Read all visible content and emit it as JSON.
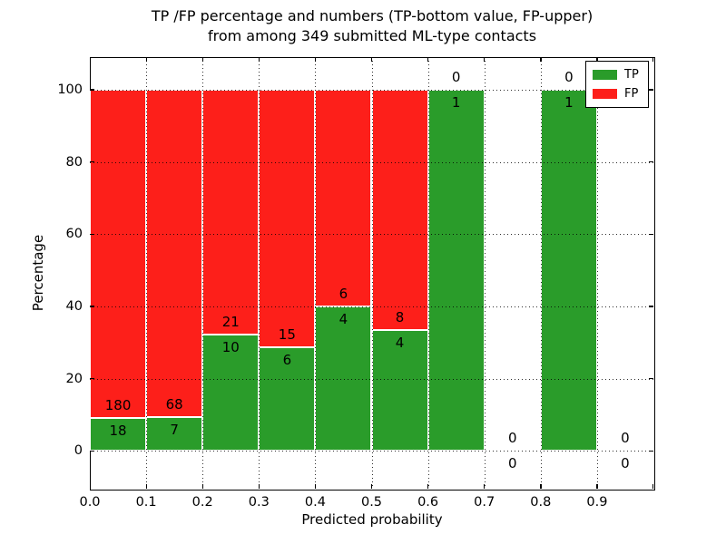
{
  "title": {
    "line1": "TP /FP percentage and numbers (TP-bottom value, FP-upper)",
    "line2": "from among 349 submitted ML-type contacts"
  },
  "axes": {
    "xlabel": "Predicted probability",
    "ylabel": "Percentage"
  },
  "legend": {
    "items": [
      {
        "label": "TP",
        "color": "#2a9c2a"
      },
      {
        "label": "FP",
        "color": "#fd1f1a"
      }
    ]
  },
  "colors": {
    "tp": "#2a9c2a",
    "fp": "#fd1f1a",
    "bar_edge": "#ffffff",
    "grid": "#000000"
  },
  "chart_data": {
    "type": "bar",
    "stacked": true,
    "title": "TP /FP percentage and numbers (TP-bottom value, FP-upper) from among 349 submitted ML-type contacts",
    "xlabel": "Predicted probability",
    "ylabel": "Percentage",
    "total_contacts": 349,
    "bin_starts": [
      0.0,
      0.1,
      0.2,
      0.3,
      0.4,
      0.5,
      0.6,
      0.7,
      0.8,
      0.9
    ],
    "bin_width": 0.1,
    "series": [
      {
        "name": "TP",
        "color": "#2a9c2a",
        "counts": [
          18,
          7,
          10,
          6,
          4,
          4,
          1,
          0,
          1,
          0
        ]
      },
      {
        "name": "FP",
        "color": "#fd1f1a",
        "counts": [
          180,
          68,
          21,
          15,
          6,
          8,
          0,
          0,
          0,
          0
        ]
      }
    ],
    "tp_percent": [
      9.1,
      9.3,
      32.3,
      28.6,
      40.0,
      33.3,
      100.0,
      0.0,
      100.0,
      0.0
    ],
    "bar_total_percent": [
      100,
      100,
      100,
      100,
      100,
      100,
      100,
      0,
      100,
      0
    ],
    "xlim": [
      0.0,
      1.0
    ],
    "ylim": [
      -10.5,
      109
    ],
    "xticks": [
      0.0,
      0.1,
      0.2,
      0.3,
      0.4,
      0.5,
      0.6,
      0.7,
      0.8,
      0.9
    ],
    "xtick_labels": [
      "0.0",
      "0.1",
      "0.2",
      "0.3",
      "0.4",
      "0.5",
      "0.6",
      "0.7",
      "0.8",
      "0.9"
    ],
    "extra_unlabeled_xticks": [
      1.0
    ],
    "yticks": [
      0,
      20,
      40,
      60,
      80,
      100
    ],
    "ytick_labels": [
      "0",
      "20",
      "40",
      "60",
      "80",
      "100"
    ],
    "grid": true,
    "grid_style": "dotted",
    "legend_position": "upper right",
    "label_note": "FP count printed above green/red boundary, TP count printed below it"
  }
}
